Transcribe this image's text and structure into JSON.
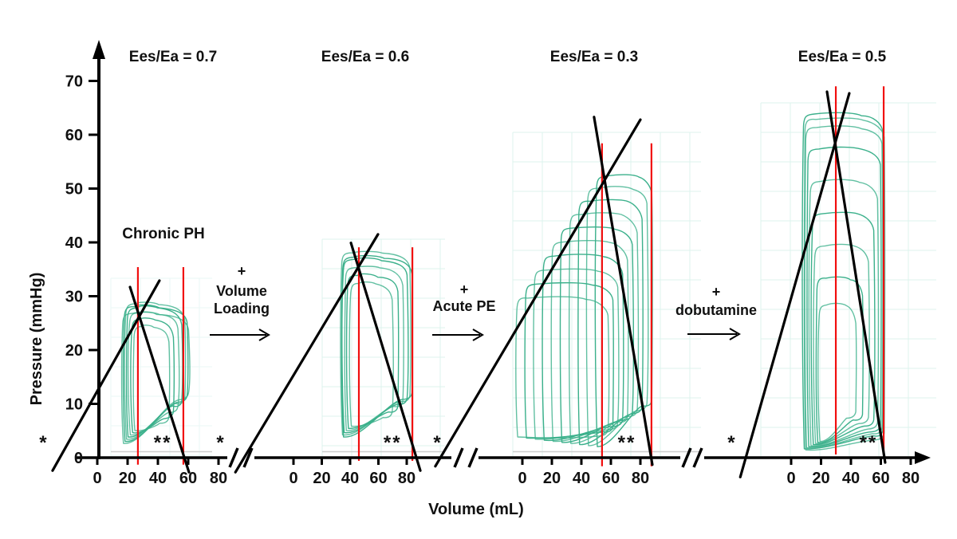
{
  "chart_data": {
    "type": "line",
    "title": "",
    "xlabel": "Volume (mL)",
    "ylabel": "Pressure (mmHg)",
    "y_ticks": [
      0,
      10,
      20,
      30,
      40,
      50,
      60,
      70
    ],
    "x_ticks": [
      0,
      20,
      40,
      60,
      80
    ],
    "ylim": [
      0,
      75
    ],
    "grid": "light-cyan monitor graph paper behind loops",
    "legend": "none",
    "colors": {
      "loops": "#3bb08b",
      "markers": "#f10f0f",
      "lines": "#000000",
      "grid": "#d7f1ec"
    },
    "panels": [
      {
        "title": "Ees/Ea  = 0.7",
        "annotation": "Chronic PH",
        "espvr_line": {
          "v": [
            -29.5,
            41.0
          ],
          "p": [
            -2.4,
            32.9
          ]
        },
        "ea_line": {
          "v": [
            21.6,
            60.5
          ],
          "p": [
            31.7,
            -2.7
          ]
        },
        "red_marker_volumes": [
          26.8,
          56.8
        ],
        "red_marker_p_top": 35.4,
        "red_marker_p_bottom": -1.3,
        "loops": [
          [
            24.0,
            47.5,
            24.5,
            4.6,
            6.5
          ],
          [
            22.5,
            50.5,
            25.8,
            4.2,
            7.5
          ],
          [
            21.0,
            53.5,
            27.0,
            3.8,
            8.5
          ],
          [
            19.5,
            56.0,
            28.0,
            3.4,
            9.5
          ],
          [
            18.5,
            58.0,
            28.8,
            3.0,
            10.0
          ],
          [
            17.5,
            59.5,
            28.2,
            2.6,
            10.5
          ],
          [
            16.5,
            60.5,
            27.0,
            2.2,
            11.0
          ]
        ],
        "asterisks": [
          {
            "text": "*",
            "v": -35.3
          },
          {
            "text": "**",
            "v": 43.2
          },
          {
            "text": "*",
            "v": 81.6
          }
        ]
      },
      {
        "title": "Ees/Ea = 0.6",
        "annotation": "",
        "espvr_line": {
          "v": [
            -41.0,
            59.7
          ],
          "p": [
            -2.7,
            41.5
          ]
        },
        "ea_line": {
          "v": [
            40.6,
            89.6
          ],
          "p": [
            39.9,
            -2.4
          ]
        },
        "red_marker_volumes": [
          46.2,
          84.0
        ],
        "red_marker_p_top": 39.1,
        "red_marker_p_bottom": -0.6,
        "loops": [
          [
            40.0,
            70.0,
            32.5,
            5.4,
            7.5
          ],
          [
            38.0,
            74.0,
            34.0,
            5.0,
            8.5
          ],
          [
            36.5,
            77.5,
            35.5,
            4.6,
            9.5
          ],
          [
            35.0,
            80.5,
            37.0,
            4.2,
            10.0
          ],
          [
            33.8,
            82.5,
            38.2,
            3.8,
            10.5
          ],
          [
            34.5,
            84.0,
            37.4,
            3.4,
            11.0
          ]
        ],
        "asterisks": [
          {
            "text": "**",
            "v": 70.0
          },
          {
            "text": "*",
            "v": 102.0
          }
        ]
      },
      {
        "title": "Ees/Ea = 0.3",
        "annotation": "",
        "espvr_line": {
          "v": [
            -59.0,
            80.0
          ],
          "p": [
            -1.6,
            62.8
          ]
        },
        "ea_line": {
          "v": [
            48.6,
            88.1
          ],
          "p": [
            63.3,
            -1.3
          ]
        },
        "red_marker_volumes": [
          54.0,
          87.5
        ],
        "red_marker_p_top": 58.4,
        "red_marker_p_bottom": -1.6,
        "loops": [
          [
            -4.0,
            58.3,
            29.8,
            3.4,
            4.2
          ],
          [
            2.0,
            61.6,
            32.4,
            3.2,
            4.8
          ],
          [
            8.0,
            64.9,
            35.0,
            3.0,
            5.4
          ],
          [
            14.0,
            68.2,
            37.6,
            2.8,
            6.0
          ],
          [
            20.0,
            71.5,
            40.2,
            2.6,
            6.6
          ],
          [
            26.0,
            74.8,
            42.8,
            2.4,
            7.2
          ],
          [
            32.0,
            78.1,
            45.3,
            2.2,
            7.8
          ],
          [
            38.0,
            81.4,
            47.8,
            2.0,
            8.4
          ],
          [
            44.0,
            84.7,
            50.2,
            1.8,
            9.0
          ],
          [
            50.0,
            88.0,
            52.5,
            1.6,
            9.6
          ]
        ],
        "asterisks": [
          {
            "text": "**",
            "v": 70.8
          }
        ]
      },
      {
        "title": "Ees/Ea = 0.5",
        "annotation": "",
        "espvr_line": {
          "v": [
            -34.0,
            38.9
          ],
          "p": [
            -3.6,
            67.7
          ]
        },
        "ea_line": {
          "v": [
            24.0,
            62.9
          ],
          "p": [
            68.0,
            -0.9
          ]
        },
        "red_marker_volumes": [
          29.9,
          61.9
        ],
        "red_marker_p_top": 69.0,
        "red_marker_p_bottom": 0.6,
        "loops": [
          [
            18.5,
            43.5,
            28.5,
            2.6,
            7.5
          ],
          [
            17.0,
            48.0,
            33.5,
            2.4,
            7.0
          ],
          [
            15.5,
            52.0,
            39.5,
            2.2,
            6.5
          ],
          [
            14.0,
            55.5,
            45.5,
            2.0,
            6.0
          ],
          [
            12.5,
            58.0,
            51.5,
            1.8,
            5.5
          ],
          [
            11.0,
            60.0,
            57.5,
            1.6,
            5.0
          ],
          [
            9.5,
            61.0,
            61.5,
            1.4,
            4.5
          ],
          [
            8.0,
            61.5,
            64.0,
            1.2,
            4.0
          ],
          [
            9.0,
            62.5,
            63.0,
            1.0,
            3.5
          ]
        ],
        "asterisks": [
          {
            "text": "*",
            "v": -39.5
          },
          {
            "text": "**",
            "v": 51.7
          }
        ]
      }
    ],
    "transitions": [
      {
        "plus": "+",
        "lines": [
          "Volume",
          "Loading"
        ]
      },
      {
        "plus": "+",
        "lines": [
          "Acute PE"
        ]
      },
      {
        "plus": "+",
        "lines": [
          "dobutamine"
        ]
      }
    ]
  }
}
